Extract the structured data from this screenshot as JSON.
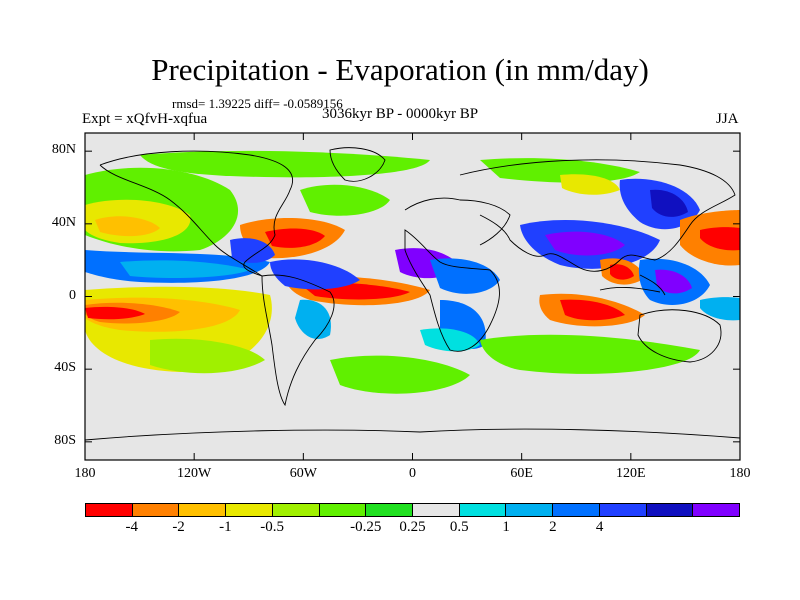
{
  "title": "Precipitation - Evaporation (in mm/day)",
  "stats": "rmsd= 1.39225 diff= -0.0589156",
  "experiment": "Expt = xQfvH-xqfua",
  "period": "3036kyr BP - 0000kyr BP",
  "season": "JJA",
  "map": {
    "lon_range": [
      -180,
      180
    ],
    "lat_range": [
      -90,
      90
    ],
    "y_ticks": [
      {
        "lat": 80,
        "label": "80N"
      },
      {
        "lat": 40,
        "label": "40N"
      },
      {
        "lat": 0,
        "label": "0"
      },
      {
        "lat": -40,
        "label": "40S"
      },
      {
        "lat": -80,
        "label": "80S"
      }
    ],
    "x_ticks": [
      {
        "lon": -180,
        "label": "180"
      },
      {
        "lon": -120,
        "label": "120W"
      },
      {
        "lon": -60,
        "label": "60W"
      },
      {
        "lon": 0,
        "label": "0"
      },
      {
        "lon": 60,
        "label": "60E"
      },
      {
        "lon": 120,
        "label": "120E"
      },
      {
        "lon": 180,
        "label": "180"
      }
    ],
    "background_color": "#e6e6e6"
  },
  "colorbar": {
    "colors": [
      "#ff0000",
      "#ff8000",
      "#ffc000",
      "#e8e800",
      "#a0f000",
      "#60f000",
      "#20e020",
      "#e6e6e6",
      "#00e0e0",
      "#00b0f0",
      "#0070ff",
      "#2040ff",
      "#1010c0",
      "#8000ff"
    ],
    "labels": [
      "-4",
      "-2",
      "-1",
      "-0.5",
      "-0.25",
      "0.25",
      "0.5",
      "1",
      "2",
      "4"
    ]
  }
}
